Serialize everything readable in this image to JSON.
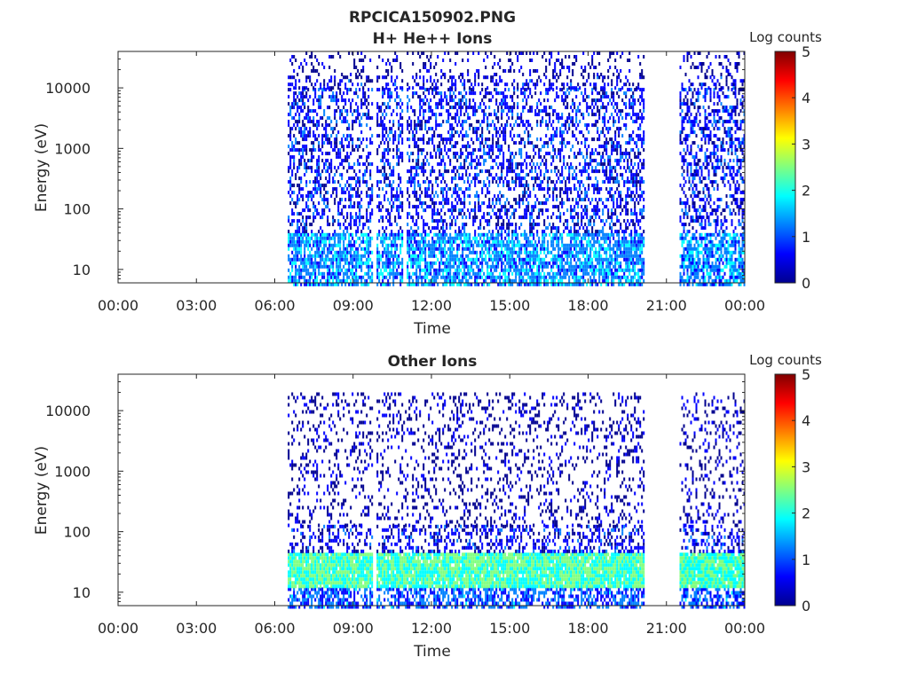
{
  "figure": {
    "title": "RPCICA150902.PNG"
  },
  "colormap": [
    "#00008f",
    "#0000ff",
    "#0080ff",
    "#00ffff",
    "#80ff80",
    "#ffff00",
    "#ff8000",
    "#ff0000",
    "#800000"
  ],
  "chart_data": [
    {
      "type": "heatmap",
      "title": "H+ He++ Ions",
      "xlabel": "Time",
      "ylabel": "Energy (eV)",
      "x_ticks": [
        "00:00",
        "03:00",
        "06:00",
        "09:00",
        "12:00",
        "15:00",
        "18:00",
        "21:00",
        "00:00"
      ],
      "x_range_hours": [
        0,
        24
      ],
      "y_scale": "log",
      "y_range_ev": [
        6,
        40000
      ],
      "y_ticks": [
        "10",
        "100",
        "1000",
        "10000"
      ],
      "y_tick_values": [
        10,
        100,
        1000,
        10000
      ],
      "data_segments_hours": [
        [
          6.5,
          20.1
        ],
        [
          21.5,
          24.0
        ]
      ],
      "data_gaps_hours": [
        [
          9.75,
          9.85
        ],
        [
          10.9,
          11.0
        ]
      ],
      "upper_energy_cutoff_ev": 16000,
      "intensity_profile": [
        {
          "energy_ev": [
            6,
            40
          ],
          "log_counts": 1.3
        },
        {
          "energy_ev": [
            40,
            10000
          ],
          "log_counts": 0.6
        },
        {
          "energy_ev": [
            10000,
            16000
          ],
          "log_counts": 0.4
        },
        {
          "energy_ev": [
            16000,
            40000
          ],
          "log_counts": 0.1
        }
      ],
      "colorbar": {
        "label": "Log counts",
        "ticks": [
          "0",
          "1",
          "2",
          "3",
          "4",
          "5"
        ],
        "range": [
          0,
          5
        ]
      }
    },
    {
      "type": "heatmap",
      "title": "Other Ions",
      "xlabel": "Time",
      "ylabel": "Energy (eV)",
      "x_ticks": [
        "00:00",
        "03:00",
        "06:00",
        "09:00",
        "12:00",
        "15:00",
        "18:00",
        "21:00",
        "00:00"
      ],
      "x_range_hours": [
        0,
        24
      ],
      "y_scale": "log",
      "y_range_ev": [
        6,
        40000
      ],
      "y_ticks": [
        "10",
        "100",
        "1000",
        "10000"
      ],
      "y_tick_values": [
        10,
        100,
        1000,
        10000
      ],
      "data_segments_hours": [
        [
          6.5,
          20.1
        ],
        [
          21.5,
          24.0
        ]
      ],
      "data_gaps_hours": [
        [
          9.75,
          9.85
        ]
      ],
      "intensity_profile": [
        {
          "energy_ev": [
            6,
            12
          ],
          "log_counts": 1.0
        },
        {
          "energy_ev": [
            12,
            45
          ],
          "log_counts": 2.2
        },
        {
          "energy_ev": [
            45,
            130
          ],
          "log_counts": 0.5
        },
        {
          "energy_ev": [
            130,
            20000
          ],
          "log_counts": 0.1
        }
      ],
      "colorbar": {
        "label": "Log counts",
        "ticks": [
          "0",
          "1",
          "2",
          "3",
          "4",
          "5"
        ],
        "range": [
          0,
          5
        ]
      }
    }
  ]
}
